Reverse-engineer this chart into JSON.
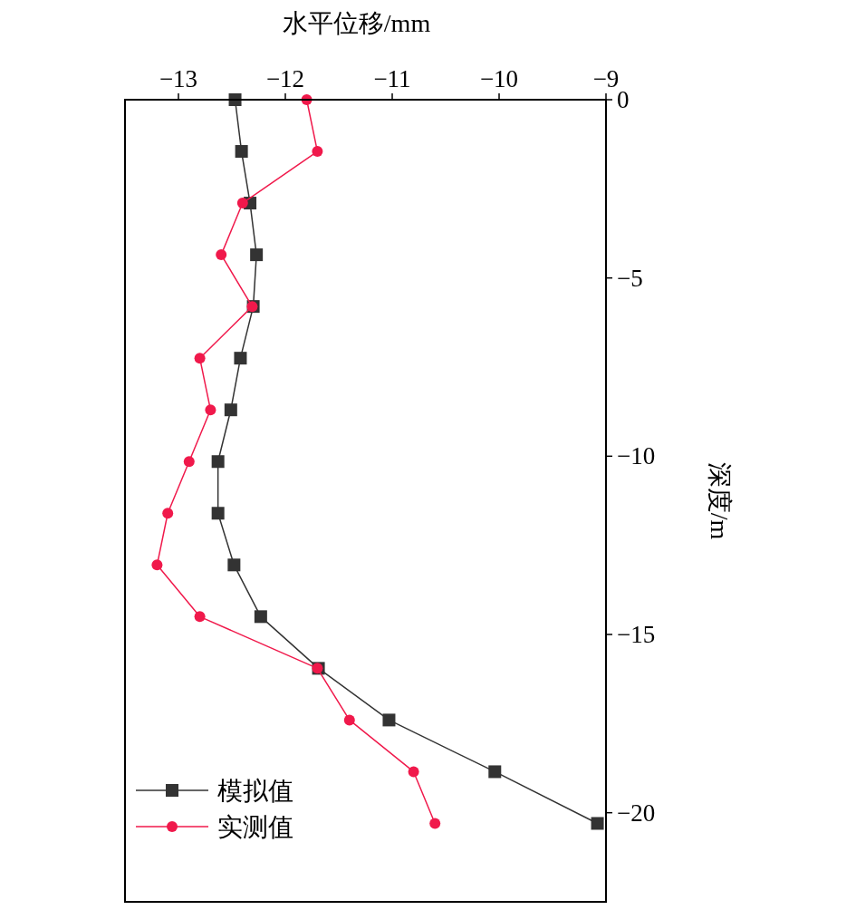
{
  "chart_data": {
    "type": "line",
    "xlabel": "水平位移/mm",
    "ylabel": "深度/m",
    "xlim": [
      -13.5,
      -9
    ],
    "xticks": [
      -13,
      -12,
      -11,
      -10,
      -9
    ],
    "ylim": [
      -22.5,
      0
    ],
    "yticks": [
      -20,
      -15,
      -10,
      -5,
      0
    ],
    "grid": false,
    "legend": "bottom left",
    "series": [
      {
        "name": "模拟值",
        "color": "#333333",
        "marker": "square",
        "x": [
          -12.47,
          -12.41,
          -12.33,
          -12.27,
          -12.3,
          -12.42,
          -12.51,
          -12.63,
          -12.63,
          -12.48,
          -12.23,
          -11.69,
          -11.03,
          -10.04,
          -9.08
        ],
        "values": [
          0,
          -1.45,
          -2.9,
          -4.35,
          -5.8,
          -7.25,
          -8.7,
          -10.15,
          -11.6,
          -13.05,
          -14.5,
          -15.95,
          -17.4,
          -18.85,
          -20.3
        ]
      },
      {
        "name": "实测值",
        "color": "#f0194b",
        "marker": "circle",
        "x": [
          -11.8,
          -11.7,
          -12.4,
          -12.6,
          -12.31,
          -12.8,
          -12.7,
          -12.9,
          -13.1,
          -13.2,
          -12.8,
          -11.7,
          -11.4,
          -10.8,
          -10.6
        ],
        "values": [
          0,
          -1.45,
          -2.9,
          -4.35,
          -5.8,
          -7.25,
          -8.7,
          -10.15,
          -11.6,
          -13.05,
          -14.5,
          -15.95,
          -17.4,
          -18.85,
          -20.3
        ]
      }
    ]
  }
}
